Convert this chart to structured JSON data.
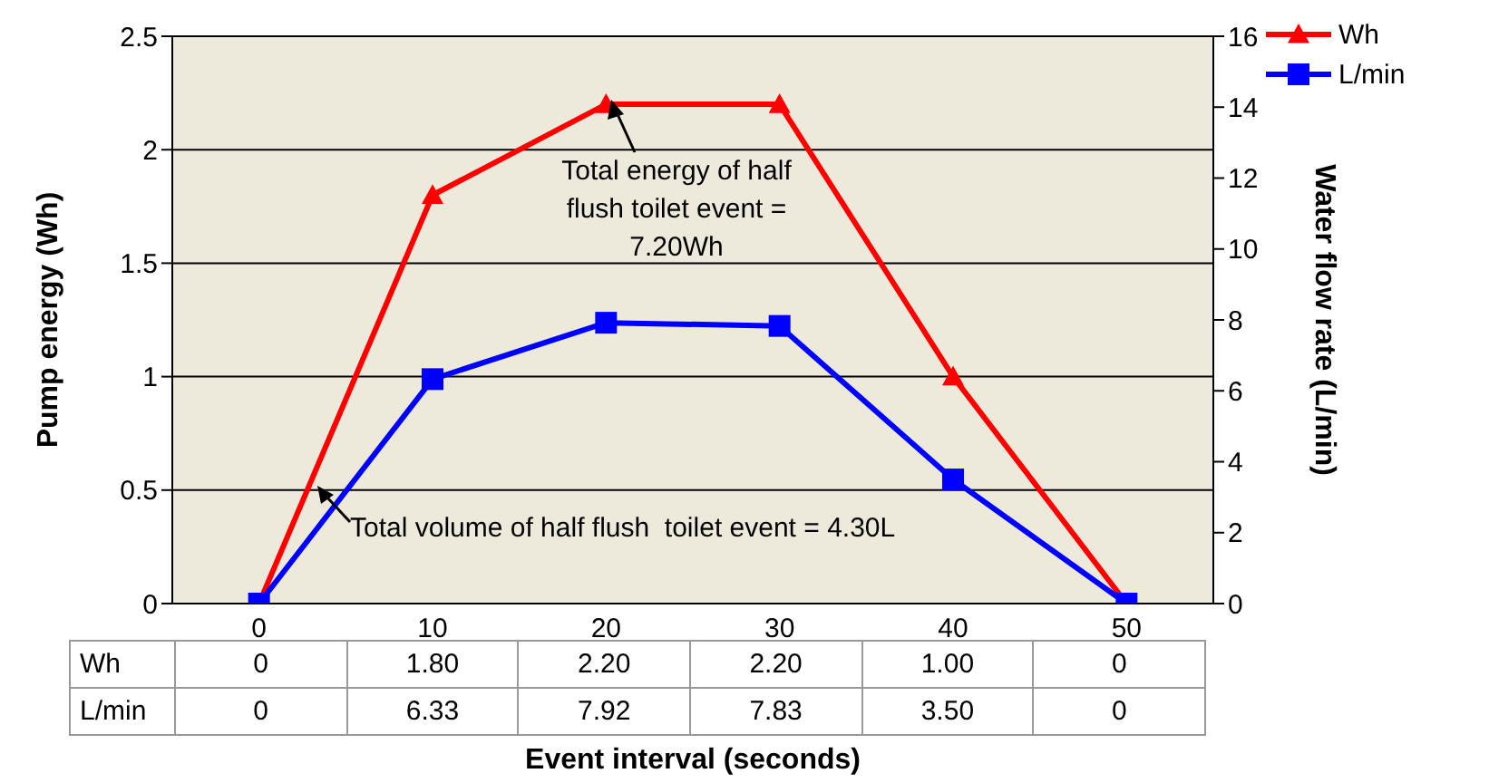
{
  "chart_data": {
    "type": "line",
    "xlabel": "Event interval (seconds)",
    "ylabel": "Pump energy (Wh)",
    "y2label": "Water flow rate (L/min)",
    "categories": [
      "0",
      "10",
      "20",
      "30",
      "40",
      "50"
    ],
    "series": [
      {
        "name": "Wh",
        "color": "#ff0000",
        "marker": "triangle",
        "values": [
          0,
          1.8,
          2.2,
          2.2,
          1.0,
          0
        ],
        "value_labels": [
          "0",
          "1.80",
          "2.20",
          "2.20",
          "1.00",
          "0"
        ]
      },
      {
        "name": "L/min",
        "color": "#0000ff",
        "marker": "square",
        "axis": "y2",
        "values": [
          0,
          6.33,
          7.92,
          7.83,
          3.5,
          0
        ],
        "value_labels": [
          "0",
          "6.33",
          "7.92",
          "7.83",
          "3.50",
          "0"
        ]
      }
    ],
    "ylim": [
      0,
      2.5
    ],
    "yticks": [
      0,
      0.5,
      1,
      1.5,
      2,
      2.5
    ],
    "y2lim": [
      0,
      16
    ],
    "y2ticks": [
      0,
      2,
      4,
      6,
      8,
      10,
      12,
      14,
      16
    ],
    "grid": "y",
    "legend": "top right",
    "line_style": "solid",
    "annotations": [
      "Total energy of half flush toilet event = 7.20Wh",
      "Total volume of half flush  toilet event = 4.30L"
    ]
  }
}
